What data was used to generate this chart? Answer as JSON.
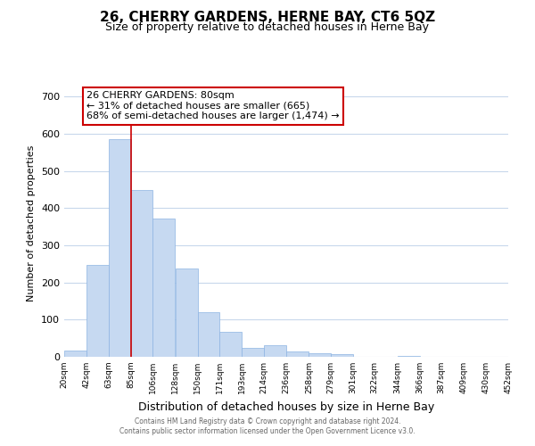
{
  "title": "26, CHERRY GARDENS, HERNE BAY, CT6 5QZ",
  "subtitle": "Size of property relative to detached houses in Herne Bay",
  "xlabel": "Distribution of detached houses by size in Herne Bay",
  "ylabel": "Number of detached properties",
  "bar_edges": [
    20,
    42,
    63,
    85,
    106,
    128,
    150,
    171,
    193,
    214,
    236,
    258,
    279,
    301,
    322,
    344,
    366,
    387,
    409,
    430,
    452
  ],
  "bar_heights": [
    18,
    248,
    585,
    448,
    372,
    238,
    121,
    67,
    24,
    31,
    14,
    10,
    8,
    0,
    0,
    2,
    0,
    0,
    0,
    0
  ],
  "bar_color": "#c6d9f1",
  "bar_edge_color": "#8db4e2",
  "vline_x": 85,
  "vline_color": "#cc0000",
  "ylim": [
    0,
    720
  ],
  "yticks": [
    0,
    100,
    200,
    300,
    400,
    500,
    600,
    700
  ],
  "xtick_labels": [
    "20sqm",
    "42sqm",
    "63sqm",
    "85sqm",
    "106sqm",
    "128sqm",
    "150sqm",
    "171sqm",
    "193sqm",
    "214sqm",
    "236sqm",
    "258sqm",
    "279sqm",
    "301sqm",
    "322sqm",
    "344sqm",
    "366sqm",
    "387sqm",
    "409sqm",
    "430sqm",
    "452sqm"
  ],
  "annotation_text": "26 CHERRY GARDENS: 80sqm\n← 31% of detached houses are smaller (665)\n68% of semi-detached houses are larger (1,474) →",
  "annotation_box_color": "#ffffff",
  "annotation_box_edge": "#cc0000",
  "footer_line1": "Contains HM Land Registry data © Crown copyright and database right 2024.",
  "footer_line2": "Contains public sector information licensed under the Open Government Licence v3.0.",
  "background_color": "#ffffff",
  "grid_color": "#c8d8ec"
}
